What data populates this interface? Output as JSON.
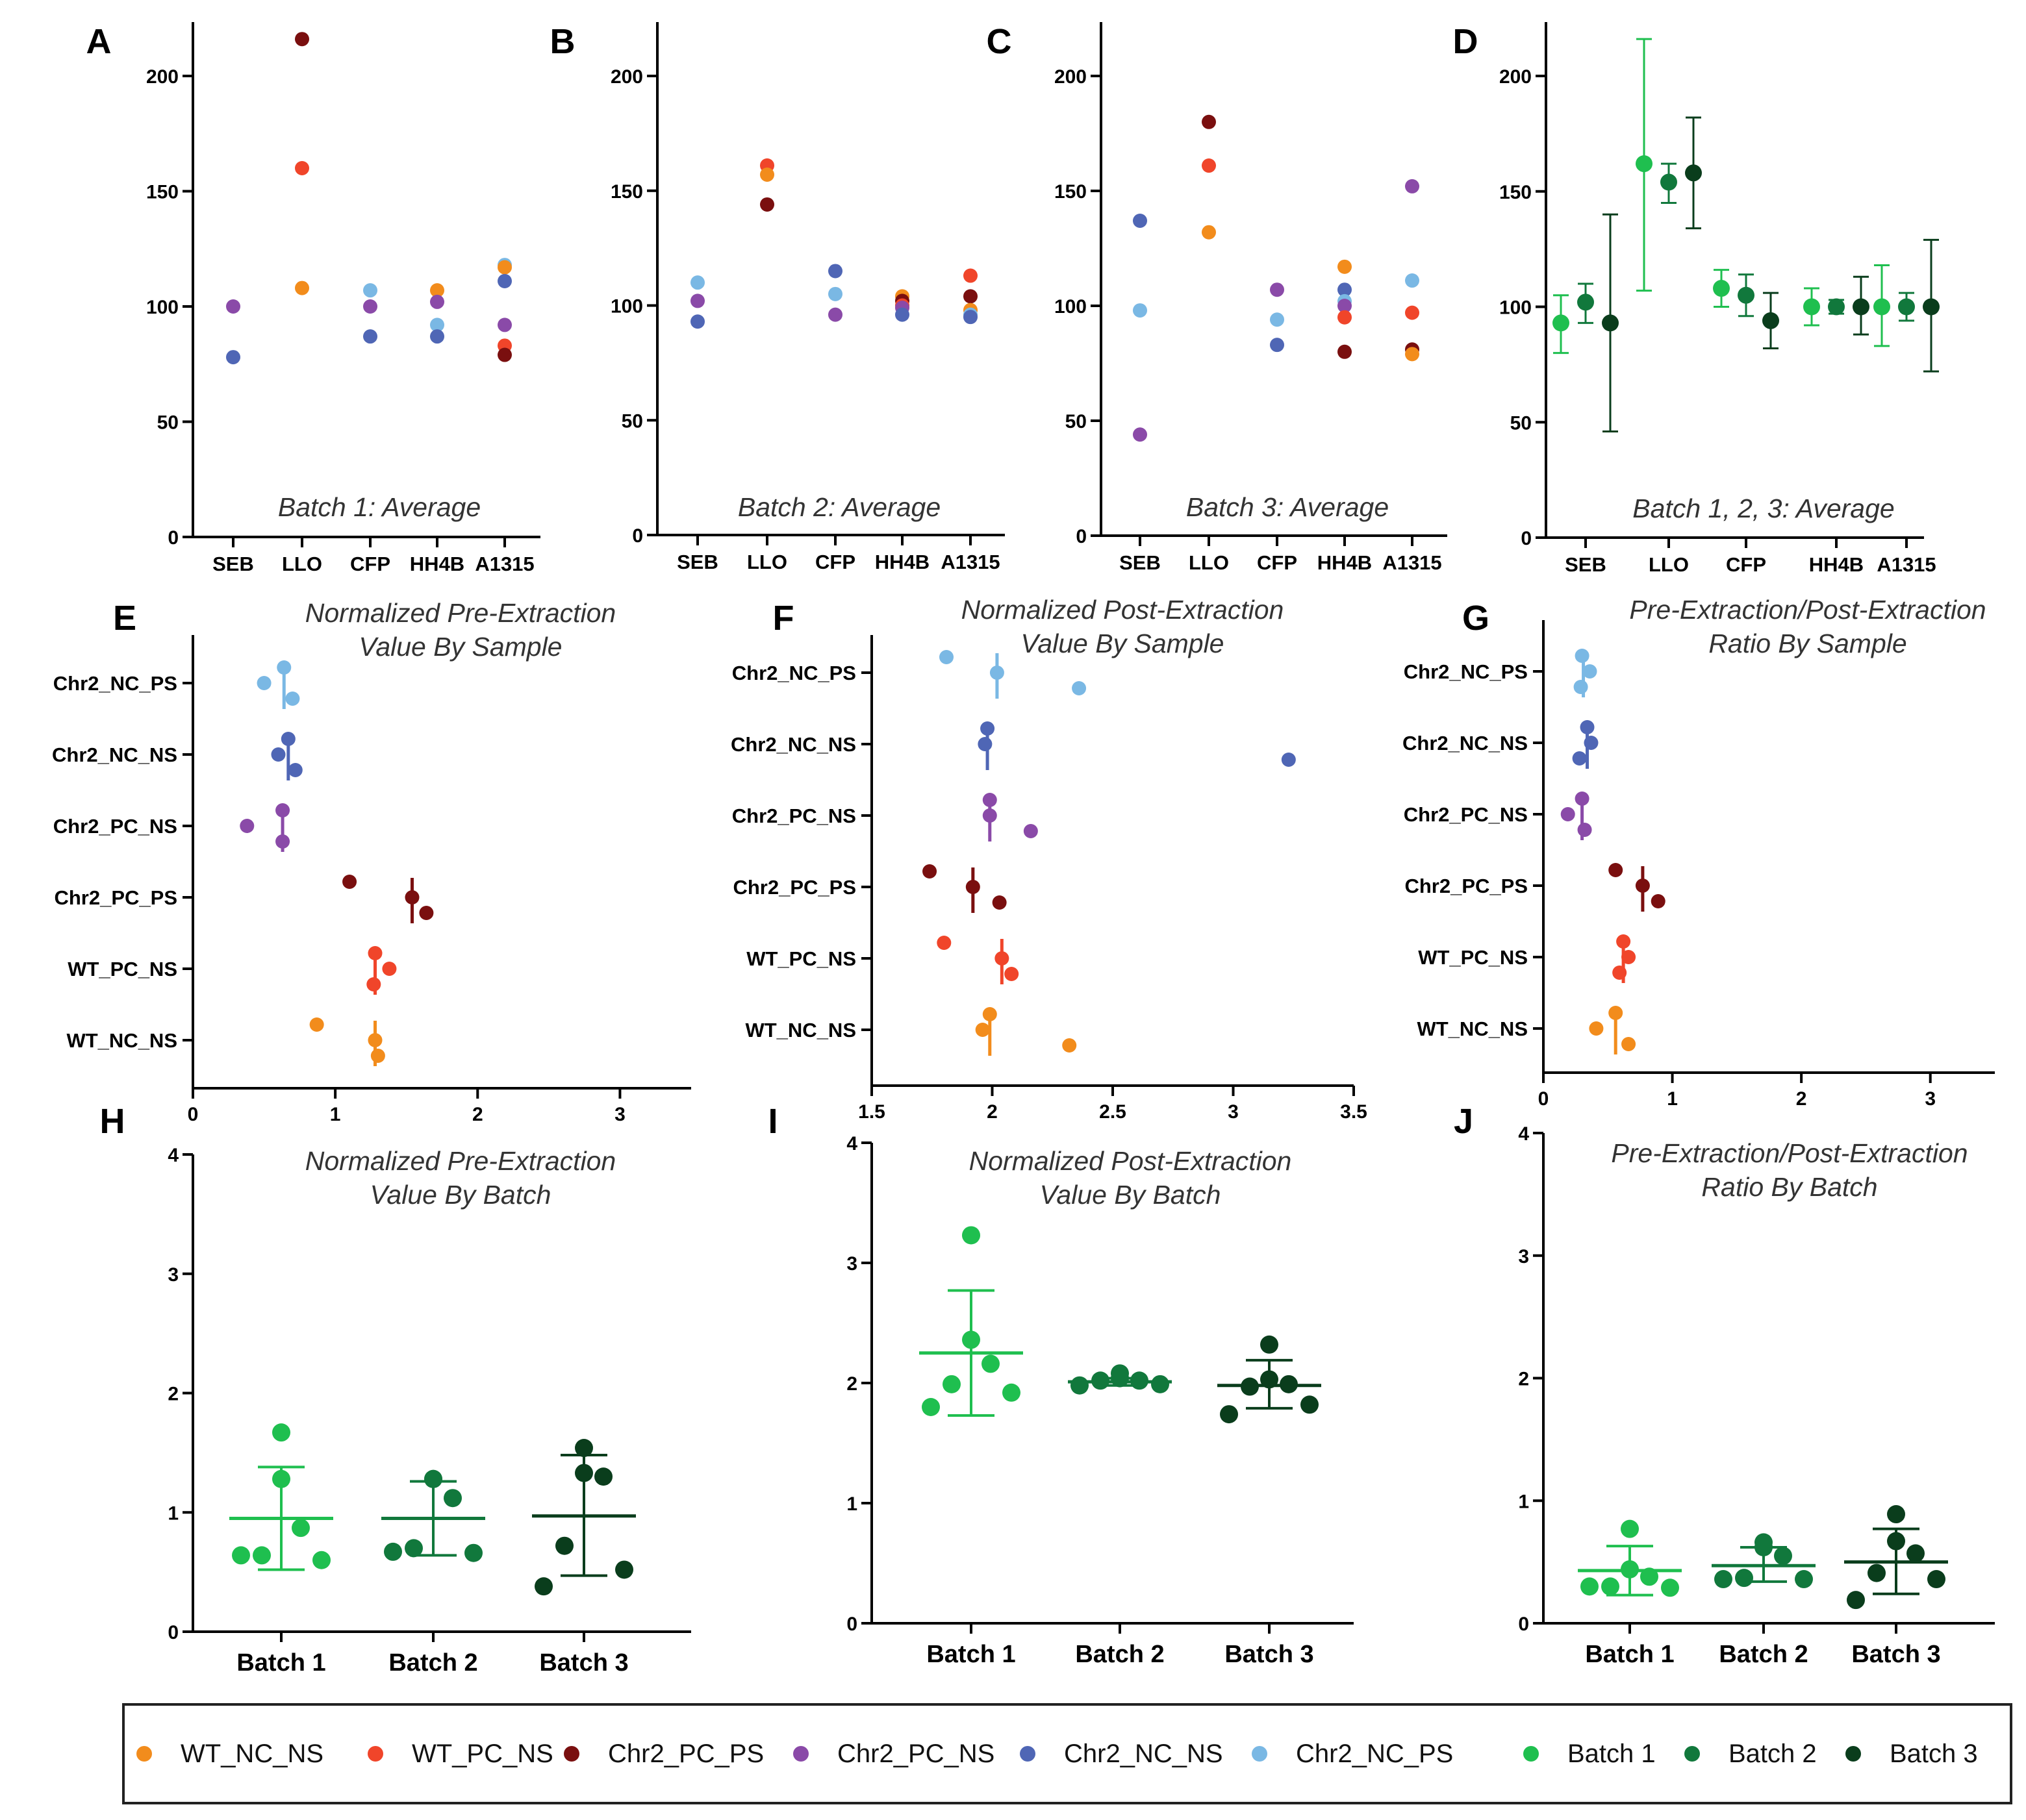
{
  "colors": {
    "WT_NC_NS": "#f28c1c",
    "WT_PC_NS": "#f0452a",
    "Chr2_PC_PS": "#7a0f0f",
    "Chr2_PC_NS": "#8a4aa8",
    "Chr2_NC_NS": "#4f66b5",
    "Chr2_NC_PS": "#7ab8e4",
    "Batch 1": "#1fbf4f",
    "Batch 2": "#11783c",
    "Batch 3": "#0a3d1c"
  },
  "legend": {
    "items": [
      "WT_NC_NS",
      "WT_PC_NS",
      "Chr2_PC_PS",
      "Chr2_PC_NS",
      "Chr2_NC_NS",
      "Chr2_NC_PS",
      "Batch 1",
      "Batch 2",
      "Batch 3"
    ]
  },
  "chart_data": [
    {
      "id": "A",
      "panel_label": "A",
      "type": "scatter",
      "title": "Batch 1: Average",
      "categories": [
        "SEB",
        "LLO",
        "CFP",
        "HH4B",
        "A1315"
      ],
      "ylim": [
        0,
        220
      ],
      "yticks": [
        0,
        50,
        100,
        150,
        200
      ],
      "points": [
        {
          "cat": 0,
          "y": 100,
          "group": "Chr2_PC_NS"
        },
        {
          "cat": 0,
          "y": 78,
          "group": "Chr2_NC_NS"
        },
        {
          "cat": 1,
          "y": 216,
          "group": "Chr2_PC_PS"
        },
        {
          "cat": 1,
          "y": 160,
          "group": "WT_PC_NS"
        },
        {
          "cat": 1,
          "y": 108,
          "group": "WT_NC_NS"
        },
        {
          "cat": 2,
          "y": 107,
          "group": "Chr2_NC_PS"
        },
        {
          "cat": 2,
          "y": 100,
          "group": "Chr2_PC_NS"
        },
        {
          "cat": 2,
          "y": 87,
          "group": "Chr2_NC_NS"
        },
        {
          "cat": 3,
          "y": 107,
          "group": "WT_NC_NS"
        },
        {
          "cat": 3,
          "y": 102,
          "group": "Chr2_PC_NS"
        },
        {
          "cat": 3,
          "y": 92,
          "group": "Chr2_NC_PS"
        },
        {
          "cat": 3,
          "y": 87,
          "group": "Chr2_NC_NS"
        },
        {
          "cat": 4,
          "y": 118,
          "group": "Chr2_NC_PS"
        },
        {
          "cat": 4,
          "y": 117,
          "group": "WT_NC_NS"
        },
        {
          "cat": 4,
          "y": 111,
          "group": "Chr2_NC_NS"
        },
        {
          "cat": 4,
          "y": 92,
          "group": "Chr2_PC_NS"
        },
        {
          "cat": 4,
          "y": 83,
          "group": "WT_PC_NS"
        },
        {
          "cat": 4,
          "y": 79,
          "group": "Chr2_PC_PS"
        }
      ]
    },
    {
      "id": "B",
      "panel_label": "B",
      "type": "scatter",
      "title": "Batch 2: Average",
      "categories": [
        "SEB",
        "LLO",
        "CFP",
        "HH4B",
        "A1315"
      ],
      "ylim": [
        0,
        220
      ],
      "yticks": [
        0,
        50,
        100,
        150,
        200
      ],
      "points": [
        {
          "cat": 0,
          "y": 110,
          "group": "Chr2_NC_PS"
        },
        {
          "cat": 0,
          "y": 102,
          "group": "Chr2_PC_NS"
        },
        {
          "cat": 0,
          "y": 93,
          "group": "Chr2_NC_NS"
        },
        {
          "cat": 1,
          "y": 161,
          "group": "WT_PC_NS"
        },
        {
          "cat": 1,
          "y": 157,
          "group": "WT_NC_NS"
        },
        {
          "cat": 1,
          "y": 144,
          "group": "Chr2_PC_PS"
        },
        {
          "cat": 2,
          "y": 115,
          "group": "Chr2_NC_NS"
        },
        {
          "cat": 2,
          "y": 105,
          "group": "Chr2_NC_PS"
        },
        {
          "cat": 2,
          "y": 96,
          "group": "Chr2_PC_NS"
        },
        {
          "cat": 3,
          "y": 104,
          "group": "WT_NC_NS"
        },
        {
          "cat": 3,
          "y": 102,
          "group": "Chr2_PC_PS"
        },
        {
          "cat": 3,
          "y": 100,
          "group": "WT_PC_NS"
        },
        {
          "cat": 3,
          "y": 99,
          "group": "Chr2_PC_NS"
        },
        {
          "cat": 3,
          "y": 96,
          "group": "Chr2_NC_NS"
        },
        {
          "cat": 4,
          "y": 113,
          "group": "WT_PC_NS"
        },
        {
          "cat": 4,
          "y": 104,
          "group": "Chr2_PC_PS"
        },
        {
          "cat": 4,
          "y": 98,
          "group": "WT_NC_NS"
        },
        {
          "cat": 4,
          "y": 96,
          "group": "Chr2_NC_PS"
        },
        {
          "cat": 4,
          "y": 95,
          "group": "Chr2_NC_NS"
        }
      ]
    },
    {
      "id": "C",
      "panel_label": "C",
      "type": "scatter",
      "title": "Batch 3: Average",
      "categories": [
        "SEB",
        "LLO",
        "CFP",
        "HH4B",
        "A1315"
      ],
      "ylim": [
        0,
        220
      ],
      "yticks": [
        0,
        50,
        100,
        150,
        200
      ],
      "points": [
        {
          "cat": 0,
          "y": 137,
          "group": "Chr2_NC_NS"
        },
        {
          "cat": 0,
          "y": 98,
          "group": "Chr2_NC_PS"
        },
        {
          "cat": 0,
          "y": 44,
          "group": "Chr2_PC_NS"
        },
        {
          "cat": 1,
          "y": 180,
          "group": "Chr2_PC_PS"
        },
        {
          "cat": 1,
          "y": 161,
          "group": "WT_PC_NS"
        },
        {
          "cat": 1,
          "y": 132,
          "group": "WT_NC_NS"
        },
        {
          "cat": 2,
          "y": 107,
          "group": "Chr2_PC_NS"
        },
        {
          "cat": 2,
          "y": 94,
          "group": "Chr2_NC_PS"
        },
        {
          "cat": 2,
          "y": 83,
          "group": "Chr2_NC_NS"
        },
        {
          "cat": 3,
          "y": 117,
          "group": "WT_NC_NS"
        },
        {
          "cat": 3,
          "y": 107,
          "group": "Chr2_NC_NS"
        },
        {
          "cat": 3,
          "y": 102,
          "group": "Chr2_NC_PS"
        },
        {
          "cat": 3,
          "y": 100,
          "group": "Chr2_PC_NS"
        },
        {
          "cat": 3,
          "y": 95,
          "group": "WT_PC_NS"
        },
        {
          "cat": 3,
          "y": 80,
          "group": "Chr2_PC_PS"
        },
        {
          "cat": 4,
          "y": 152,
          "group": "Chr2_PC_NS"
        },
        {
          "cat": 4,
          "y": 111,
          "group": "Chr2_NC_PS"
        },
        {
          "cat": 4,
          "y": 97,
          "group": "WT_PC_NS"
        },
        {
          "cat": 4,
          "y": 81,
          "group": "Chr2_PC_PS"
        },
        {
          "cat": 4,
          "y": 79,
          "group": "WT_NC_NS"
        }
      ]
    },
    {
      "id": "D",
      "panel_label": "D",
      "type": "scatter",
      "title": "Batch 1, 2, 3: Average",
      "categories": [
        "SEB",
        "LLO",
        "CFP",
        "HH4B",
        "A1315"
      ],
      "ylim": [
        0,
        220
      ],
      "yticks": [
        0,
        50,
        100,
        150,
        200
      ],
      "series": [
        {
          "name": "Batch 1",
          "means": [
            93,
            162,
            108,
            100,
            100
          ],
          "err_low": [
            80,
            107,
            100,
            92,
            83
          ],
          "err_high": [
            105,
            216,
            116,
            108,
            118
          ]
        },
        {
          "name": "Batch 2",
          "means": [
            102,
            154,
            105,
            100,
            100
          ],
          "err_low": [
            93,
            145,
            96,
            97,
            94
          ],
          "err_high": [
            110,
            162,
            114,
            103,
            106
          ]
        },
        {
          "name": "Batch 3",
          "means": [
            93,
            158,
            94,
            100,
            100
          ],
          "err_low": [
            46,
            134,
            82,
            88,
            72
          ],
          "err_high": [
            140,
            182,
            106,
            113,
            129
          ]
        }
      ]
    },
    {
      "id": "E",
      "panel_label": "E",
      "type": "scatter",
      "title": [
        "Normalized Pre-Extraction",
        "Value By Sample"
      ],
      "categories": [
        "Chr2_NC_PS",
        "Chr2_NC_NS",
        "Chr2_PC_NS",
        "Chr2_PC_PS",
        "WT_PC_NS",
        "WT_NC_NS"
      ],
      "xlim": [
        0,
        3.5
      ],
      "xticks": [
        0,
        1,
        2,
        3
      ],
      "rows": [
        {
          "name": "Chr2_NC_PS",
          "values": [
            0.64,
            0.5,
            0.7
          ],
          "mean": 0.64
        },
        {
          "name": "Chr2_NC_NS",
          "values": [
            0.67,
            0.6,
            0.72
          ],
          "mean": 0.67
        },
        {
          "name": "Chr2_PC_NS",
          "values": [
            0.63,
            0.38,
            0.63
          ],
          "mean": 0.63
        },
        {
          "name": "Chr2_PC_PS",
          "values": [
            1.1,
            1.54,
            1.64
          ],
          "mean": 1.54
        },
        {
          "name": "WT_PC_NS",
          "values": [
            1.28,
            1.38,
            1.27
          ],
          "mean": 1.28
        },
        {
          "name": "WT_NC_NS",
          "values": [
            0.87,
            1.28,
            1.3
          ],
          "mean": 1.28
        }
      ]
    },
    {
      "id": "F",
      "panel_label": "F",
      "type": "scatter",
      "title": [
        "Normalized Post-Extraction",
        "Value By Sample"
      ],
      "categories": [
        "Chr2_NC_PS",
        "Chr2_NC_NS",
        "Chr2_PC_NS",
        "Chr2_PC_PS",
        "WT_PC_NS",
        "WT_NC_NS"
      ],
      "xlim": [
        1.5,
        3.5
      ],
      "xticks": [
        1.5,
        2.0,
        2.5,
        3.0,
        3.5
      ],
      "rows": [
        {
          "name": "Chr2_NC_PS",
          "values": [
            1.81,
            2.02,
            2.36
          ],
          "mean": 2.02
        },
        {
          "name": "Chr2_NC_NS",
          "values": [
            1.98,
            1.97,
            3.23
          ],
          "mean": 1.98
        },
        {
          "name": "Chr2_PC_NS",
          "values": [
            1.99,
            1.99,
            2.16
          ],
          "mean": 1.99
        },
        {
          "name": "Chr2_PC_PS",
          "values": [
            1.74,
            1.92,
            2.03
          ],
          "mean": 1.92
        },
        {
          "name": "WT_PC_NS",
          "values": [
            1.8,
            2.04,
            2.08
          ],
          "mean": 2.04
        },
        {
          "name": "WT_NC_NS",
          "values": [
            1.99,
            1.96,
            2.32
          ],
          "mean": 1.99
        }
      ]
    },
    {
      "id": "G",
      "panel_label": "G",
      "type": "scatter",
      "title": [
        "Pre-Extraction/Post-Extraction",
        "Ratio By Sample"
      ],
      "categories": [
        "Chr2_NC_PS",
        "Chr2_NC_NS",
        "Chr2_PC_NS",
        "Chr2_PC_PS",
        "WT_PC_NS",
        "WT_NC_NS"
      ],
      "xlim": [
        0,
        3.5
      ],
      "xticks": [
        0,
        1,
        2,
        3
      ],
      "rows": [
        {
          "name": "Chr2_NC_PS",
          "values": [
            0.3,
            0.36,
            0.29
          ],
          "mean": 0.31
        },
        {
          "name": "Chr2_NC_NS",
          "values": [
            0.34,
            0.37,
            0.28
          ],
          "mean": 0.34
        },
        {
          "name": "Chr2_PC_NS",
          "values": [
            0.3,
            0.19,
            0.32
          ],
          "mean": 0.3
        },
        {
          "name": "Chr2_PC_PS",
          "values": [
            0.56,
            0.77,
            0.89
          ],
          "mean": 0.77
        },
        {
          "name": "WT_PC_NS",
          "values": [
            0.62,
            0.66,
            0.59
          ],
          "mean": 0.62
        },
        {
          "name": "WT_NC_NS",
          "values": [
            0.56,
            0.41,
            0.66
          ],
          "mean": 0.56
        }
      ]
    },
    {
      "id": "H",
      "panel_label": "H",
      "type": "scatter",
      "title": [
        "Normalized Pre-Extraction",
        "Value By Batch"
      ],
      "categories": [
        "Batch 1",
        "Batch 2",
        "Batch 3"
      ],
      "ylim": [
        0,
        4
      ],
      "yticks": [
        0,
        1,
        2,
        3,
        4
      ],
      "groups": [
        {
          "name": "Batch 1",
          "values": [
            1.67,
            1.28,
            0.87,
            0.64,
            0.6,
            0.64
          ],
          "mean": 0.95,
          "sd": [
            0.52,
            1.38
          ]
        },
        {
          "name": "Batch 2",
          "values": [
            1.28,
            1.28,
            1.12,
            0.7,
            0.66,
            0.67
          ],
          "mean": 0.95,
          "sd": [
            0.64,
            1.26
          ]
        },
        {
          "name": "Batch 3",
          "values": [
            1.54,
            1.33,
            1.3,
            0.72,
            0.52,
            0.38
          ],
          "mean": 0.97,
          "sd": [
            0.47,
            1.48
          ]
        }
      ]
    },
    {
      "id": "I",
      "panel_label": "I",
      "type": "scatter",
      "title": [
        "Normalized Post-Extraction",
        "Value By Batch"
      ],
      "categories": [
        "Batch 1",
        "Batch 2",
        "Batch 3"
      ],
      "ylim": [
        0,
        4
      ],
      "yticks": [
        0,
        1,
        2,
        3,
        4
      ],
      "groups": [
        {
          "name": "Batch 1",
          "values": [
            3.23,
            2.36,
            2.16,
            1.99,
            1.92,
            1.8
          ],
          "mean": 2.25,
          "sd": [
            1.73,
            2.77
          ]
        },
        {
          "name": "Batch 2",
          "values": [
            2.08,
            2.04,
            2.02,
            2.02,
            1.99,
            1.98
          ],
          "mean": 2.01,
          "sd": [
            1.98,
            2.04
          ]
        },
        {
          "name": "Batch 3",
          "values": [
            2.32,
            2.03,
            1.99,
            1.97,
            1.82,
            1.74
          ],
          "mean": 1.98,
          "sd": [
            1.79,
            2.19
          ]
        }
      ]
    },
    {
      "id": "J",
      "panel_label": "J",
      "type": "scatter",
      "title": [
        "Pre-Extraction/Post-Extraction",
        "Ratio By Batch"
      ],
      "categories": [
        "Batch 1",
        "Batch 2",
        "Batch 3"
      ],
      "ylim": [
        0,
        4
      ],
      "yticks": [
        0,
        1,
        2,
        3,
        4
      ],
      "groups": [
        {
          "name": "Batch 1",
          "values": [
            0.77,
            0.44,
            0.38,
            0.3,
            0.29,
            0.3
          ],
          "mean": 0.43,
          "sd": [
            0.23,
            0.63
          ]
        },
        {
          "name": "Batch 2",
          "values": [
            0.66,
            0.62,
            0.55,
            0.37,
            0.36,
            0.36
          ],
          "mean": 0.47,
          "sd": [
            0.34,
            0.62
          ]
        },
        {
          "name": "Batch 3",
          "values": [
            0.89,
            0.67,
            0.57,
            0.41,
            0.36,
            0.19
          ],
          "mean": 0.5,
          "sd": [
            0.24,
            0.77
          ]
        }
      ]
    }
  ]
}
